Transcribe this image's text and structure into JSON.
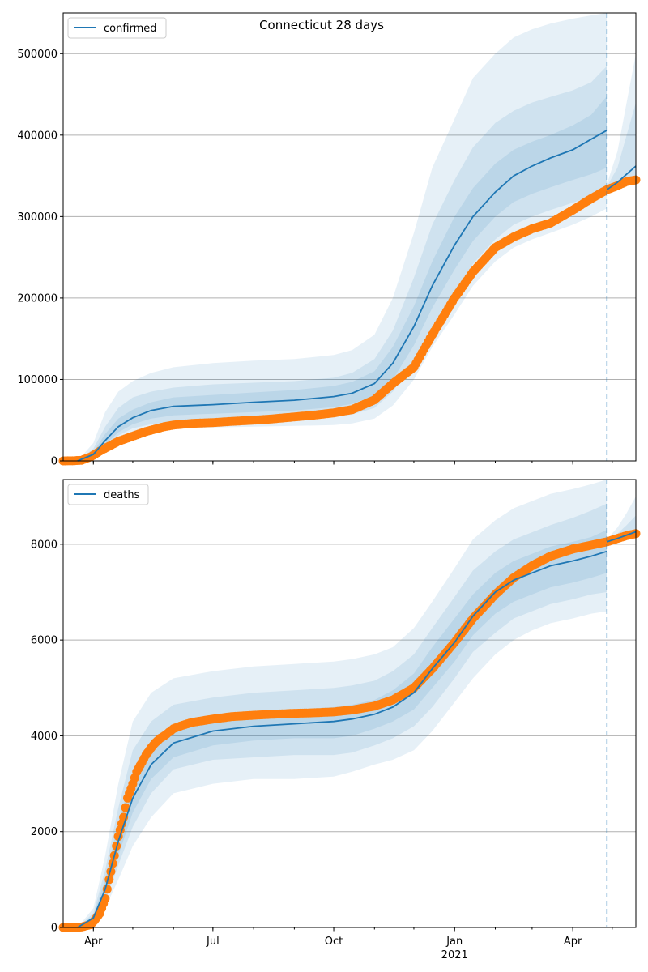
{
  "figure": {
    "title": "Connecticut 28 days"
  },
  "colors": {
    "model_line": "#1f77b4",
    "band": "#1f77b4",
    "observed": "#ff7f0e",
    "grid": "#b0b0b0",
    "axis": "#000000"
  },
  "chart_data": [
    {
      "type": "line",
      "panel": "top",
      "legend": {
        "label": "confirmed",
        "placement": "top-left"
      },
      "title": "Connecticut 28 days",
      "x_range": [
        "2020-03-09",
        "2021-05-19"
      ],
      "ylim": [
        0,
        550000
      ],
      "y_ticks": [
        0,
        100000,
        200000,
        300000,
        400000,
        500000
      ],
      "y_tick_labels": [
        "0",
        "100000",
        "200000",
        "300000",
        "400000",
        "500000"
      ],
      "grid": "horizontal",
      "forecast_date": "2021-04-27",
      "model_median": {
        "x": [
          "2020-03-20",
          "2020-04-01",
          "2020-04-10",
          "2020-04-20",
          "2020-05-01",
          "2020-05-15",
          "2020-06-01",
          "2020-07-01",
          "2020-08-01",
          "2020-09-01",
          "2020-10-01",
          "2020-10-15",
          "2020-11-01",
          "2020-11-15",
          "2020-12-01",
          "2020-12-15",
          "2021-01-01",
          "2021-01-15",
          "2021-02-01",
          "2021-02-15",
          "2021-03-01",
          "2021-03-15",
          "2021-04-01",
          "2021-04-15",
          "2021-04-27"
        ],
        "y": [
          0,
          8000,
          25000,
          42000,
          53000,
          62000,
          67000,
          69000,
          72000,
          74500,
          79000,
          83000,
          95000,
          120000,
          165000,
          215000,
          265000,
          300000,
          330000,
          350000,
          362000,
          372000,
          382000,
          395000,
          406000
        ]
      },
      "model_continuation": {
        "x": [
          "2021-04-27",
          "2021-05-05",
          "2021-05-12",
          "2021-05-19"
        ],
        "y": [
          333000,
          342000,
          352000,
          362000
        ]
      },
      "bands": [
        {
          "x": [
            "2020-03-20",
            "2020-04-01",
            "2020-04-10",
            "2020-04-20",
            "2020-05-01",
            "2020-05-15",
            "2020-06-01",
            "2020-07-01",
            "2020-08-01",
            "2020-09-01",
            "2020-10-01",
            "2020-10-15",
            "2020-11-01",
            "2020-11-15",
            "2020-12-01",
            "2020-12-15",
            "2021-01-01",
            "2021-01-15",
            "2021-02-01",
            "2021-02-15",
            "2021-03-01",
            "2021-03-15",
            "2021-04-01",
            "2021-04-15",
            "2021-04-27"
          ],
          "lower": [
            0,
            3000,
            12000,
            25000,
            34000,
            38000,
            40000,
            41000,
            42000,
            43000,
            44000,
            46000,
            52000,
            68000,
            100000,
            140000,
            180000,
            215000,
            245000,
            262000,
            272000,
            280000,
            290000,
            300000,
            310000
          ],
          "upper": [
            0,
            22000,
            60000,
            85000,
            98000,
            108000,
            115000,
            120000,
            123000,
            125000,
            130000,
            136000,
            155000,
            200000,
            280000,
            360000,
            420000,
            470000,
            500000,
            520000,
            530000,
            537000,
            543000,
            547000,
            550000
          ]
        },
        {
          "x": [
            "2020-03-20",
            "2020-04-01",
            "2020-04-10",
            "2020-04-20",
            "2020-05-01",
            "2020-05-15",
            "2020-06-01",
            "2020-07-01",
            "2020-08-01",
            "2020-09-01",
            "2020-10-01",
            "2020-10-15",
            "2020-11-01",
            "2020-11-15",
            "2020-12-01",
            "2020-12-15",
            "2021-01-01",
            "2021-01-15",
            "2021-02-01",
            "2021-02-15",
            "2021-03-01",
            "2021-03-15",
            "2021-04-01",
            "2021-04-15",
            "2021-04-27"
          ],
          "lower": [
            0,
            5000,
            17000,
            31000,
            40000,
            45000,
            48000,
            50000,
            51000,
            52000,
            54000,
            57000,
            65000,
            85000,
            122000,
            165000,
            208000,
            242000,
            272000,
            290000,
            300000,
            308000,
            317000,
            325000,
            333000
          ],
          "upper": [
            0,
            15000,
            42000,
            65000,
            78000,
            85000,
            90000,
            94000,
            96000,
            98000,
            102000,
            108000,
            125000,
            160000,
            225000,
            290000,
            345000,
            385000,
            415000,
            430000,
            440000,
            447000,
            455000,
            465000,
            485000
          ]
        },
        {
          "x": [
            "2020-03-20",
            "2020-04-01",
            "2020-04-10",
            "2020-04-20",
            "2020-05-01",
            "2020-05-15",
            "2020-06-01",
            "2020-07-01",
            "2020-08-01",
            "2020-09-01",
            "2020-10-01",
            "2020-10-15",
            "2020-11-01",
            "2020-11-15",
            "2020-12-01",
            "2020-12-15",
            "2021-01-01",
            "2021-01-15",
            "2021-02-01",
            "2021-02-15",
            "2021-03-01",
            "2021-03-15",
            "2021-04-01",
            "2021-04-15",
            "2021-04-27"
          ],
          "lower": [
            0,
            6000,
            20000,
            35000,
            45000,
            52000,
            56000,
            58000,
            60000,
            62000,
            66000,
            70000,
            80000,
            100000,
            142000,
            188000,
            235000,
            270000,
            300000,
            318000,
            328000,
            336000,
            345000,
            352000,
            360000
          ],
          "upper": [
            0,
            11000,
            33000,
            52000,
            63000,
            72000,
            78000,
            81000,
            84000,
            87000,
            92000,
            97000,
            110000,
            140000,
            190000,
            245000,
            300000,
            335000,
            365000,
            382000,
            392000,
            400000,
            412000,
            425000,
            448000
          ]
        }
      ],
      "continuation_bands": [
        {
          "x": [
            "2021-04-27",
            "2021-05-05",
            "2021-05-12",
            "2021-05-19"
          ],
          "lower": [
            330000,
            335000,
            338000,
            340000
          ],
          "upper": [
            340000,
            380000,
            440000,
            500000
          ]
        },
        {
          "x": [
            "2021-04-27",
            "2021-05-05",
            "2021-05-12",
            "2021-05-19"
          ],
          "lower": [
            331000,
            337000,
            342000,
            345000
          ],
          "upper": [
            337000,
            360000,
            400000,
            440000
          ]
        }
      ],
      "observed": {
        "x": [
          "2020-03-09",
          "2020-03-16",
          "2020-03-23",
          "2020-03-30",
          "2020-04-06",
          "2020-04-13",
          "2020-04-20",
          "2020-04-27",
          "2020-05-04",
          "2020-05-11",
          "2020-05-18",
          "2020-05-25",
          "2020-06-01",
          "2020-06-15",
          "2020-07-01",
          "2020-07-15",
          "2020-08-01",
          "2020-08-15",
          "2020-09-01",
          "2020-09-15",
          "2020-10-01",
          "2020-10-15",
          "2020-11-01",
          "2020-11-15",
          "2020-12-01",
          "2020-12-15",
          "2021-01-01",
          "2021-01-15",
          "2021-02-01",
          "2021-02-15",
          "2021-03-01",
          "2021-03-15",
          "2021-04-01",
          "2021-04-15",
          "2021-04-27",
          "2021-05-05",
          "2021-05-12",
          "2021-05-19"
        ],
        "y": [
          0,
          100,
          800,
          5000,
          12000,
          18000,
          24000,
          28000,
          32000,
          36000,
          39000,
          42000,
          44000,
          46000,
          47000,
          48500,
          50000,
          51500,
          54000,
          56000,
          59000,
          63000,
          75000,
          95000,
          115000,
          155000,
          200000,
          232000,
          262000,
          275000,
          285000,
          292000,
          308000,
          322000,
          333000,
          338000,
          343000,
          345000
        ]
      }
    },
    {
      "type": "line",
      "panel": "bottom",
      "legend": {
        "label": "deaths",
        "placement": "top-left"
      },
      "x_range": [
        "2020-03-09",
        "2021-05-19"
      ],
      "x_ticks": [
        "2020-04-01",
        "2020-07-01",
        "2020-10-01",
        "2021-01-01",
        "2021-04-01"
      ],
      "x_tick_labels": [
        "Apr",
        "Jul",
        "Oct",
        "Jan",
        "Apr"
      ],
      "x_year_label": "2021",
      "ylim": [
        0,
        9350
      ],
      "y_ticks": [
        0,
        2000,
        4000,
        6000,
        8000
      ],
      "y_tick_labels": [
        "0",
        "2000",
        "4000",
        "6000",
        "8000"
      ],
      "grid": "horizontal",
      "forecast_date": "2021-04-27",
      "model_median": {
        "x": [
          "2020-03-20",
          "2020-04-01",
          "2020-04-10",
          "2020-04-20",
          "2020-05-01",
          "2020-05-15",
          "2020-06-01",
          "2020-07-01",
          "2020-08-01",
          "2020-09-01",
          "2020-10-01",
          "2020-10-15",
          "2020-11-01",
          "2020-11-15",
          "2020-12-01",
          "2020-12-15",
          "2021-01-01",
          "2021-01-15",
          "2021-02-01",
          "2021-02-15",
          "2021-03-01",
          "2021-03-15",
          "2021-04-01",
          "2021-04-15",
          "2021-04-27"
        ],
        "y": [
          0,
          200,
          800,
          1800,
          2700,
          3400,
          3850,
          4100,
          4200,
          4250,
          4300,
          4350,
          4450,
          4600,
          4900,
          5400,
          5950,
          6500,
          7000,
          7250,
          7400,
          7550,
          7650,
          7750,
          7850
        ]
      },
      "model_continuation": {
        "x": [
          "2021-04-27",
          "2021-05-05",
          "2021-05-12",
          "2021-05-19"
        ],
        "y": [
          8050,
          8120,
          8190,
          8260
        ]
      },
      "bands": [
        {
          "x": [
            "2020-03-20",
            "2020-04-01",
            "2020-04-10",
            "2020-04-20",
            "2020-05-01",
            "2020-05-15",
            "2020-06-01",
            "2020-07-01",
            "2020-08-01",
            "2020-09-01",
            "2020-10-01",
            "2020-10-15",
            "2020-11-01",
            "2020-11-15",
            "2020-12-01",
            "2020-12-15",
            "2021-01-01",
            "2021-01-15",
            "2021-02-01",
            "2021-02-15",
            "2021-03-01",
            "2021-03-15",
            "2021-04-01",
            "2021-04-15",
            "2021-04-27"
          ],
          "lower": [
            0,
            100,
            400,
            1000,
            1700,
            2300,
            2800,
            3000,
            3100,
            3100,
            3150,
            3250,
            3400,
            3500,
            3700,
            4100,
            4700,
            5200,
            5700,
            6000,
            6200,
            6350,
            6450,
            6550,
            6600
          ],
          "upper": [
            0,
            400,
            1500,
            3000,
            4300,
            4900,
            5200,
            5350,
            5450,
            5500,
            5550,
            5600,
            5700,
            5850,
            6250,
            6800,
            7500,
            8100,
            8500,
            8750,
            8900,
            9050,
            9150,
            9250,
            9350
          ]
        },
        {
          "x": [
            "2020-03-20",
            "2020-04-01",
            "2020-04-10",
            "2020-04-20",
            "2020-05-01",
            "2020-05-15",
            "2020-06-01",
            "2020-07-01",
            "2020-08-01",
            "2020-09-01",
            "2020-10-01",
            "2020-10-15",
            "2020-11-01",
            "2020-11-15",
            "2020-12-01",
            "2020-12-15",
            "2021-01-01",
            "2021-01-15",
            "2021-02-01",
            "2021-02-15",
            "2021-03-01",
            "2021-03-15",
            "2021-04-01",
            "2021-04-15",
            "2021-04-27"
          ],
          "lower": [
            0,
            150,
            550,
            1300,
            2100,
            2800,
            3300,
            3500,
            3550,
            3600,
            3600,
            3650,
            3800,
            3950,
            4200,
            4600,
            5200,
            5750,
            6150,
            6450,
            6600,
            6750,
            6850,
            6950,
            7000
          ],
          "upper": [
            0,
            300,
            1200,
            2500,
            3700,
            4300,
            4650,
            4800,
            4900,
            4950,
            5000,
            5050,
            5150,
            5350,
            5700,
            6250,
            6900,
            7450,
            7850,
            8100,
            8250,
            8400,
            8550,
            8700,
            8850
          ]
        },
        {
          "x": [
            "2020-03-20",
            "2020-04-01",
            "2020-04-10",
            "2020-04-20",
            "2020-05-01",
            "2020-05-15",
            "2020-06-01",
            "2020-07-01",
            "2020-08-01",
            "2020-09-01",
            "2020-10-01",
            "2020-10-15",
            "2020-11-01",
            "2020-11-15",
            "2020-12-01",
            "2020-12-15",
            "2021-01-01",
            "2021-01-15",
            "2021-02-01",
            "2021-02-15",
            "2021-03-01",
            "2021-03-15",
            "2021-04-01",
            "2021-04-15",
            "2021-04-27"
          ],
          "lower": [
            0,
            180,
            650,
            1500,
            2400,
            3100,
            3550,
            3800,
            3900,
            3950,
            3950,
            4000,
            4150,
            4300,
            4550,
            5000,
            5550,
            6100,
            6550,
            6800,
            6950,
            7100,
            7200,
            7300,
            7400
          ],
          "upper": [
            0,
            250,
            1000,
            2200,
            3200,
            3850,
            4200,
            4400,
            4500,
            4550,
            4600,
            4650,
            4750,
            4950,
            5300,
            5850,
            6450,
            6950,
            7400,
            7650,
            7800,
            7950,
            8050,
            8150,
            8300
          ]
        }
      ],
      "continuation_bands": [
        {
          "x": [
            "2021-04-27",
            "2021-05-05",
            "2021-05-12",
            "2021-05-19"
          ],
          "lower": [
            8000,
            8050,
            8100,
            8150
          ],
          "upper": [
            8100,
            8350,
            8650,
            9000
          ]
        },
        {
          "x": [
            "2021-04-27",
            "2021-05-05",
            "2021-05-12",
            "2021-05-19"
          ],
          "lower": [
            8020,
            8080,
            8140,
            8200
          ],
          "upper": [
            8080,
            8220,
            8400,
            8600
          ]
        }
      ],
      "observed": {
        "x": [
          "2020-03-09",
          "2020-03-16",
          "2020-03-23",
          "2020-03-30",
          "2020-04-02",
          "2020-04-06",
          "2020-04-10",
          "2020-04-13",
          "2020-04-17",
          "2020-04-20",
          "2020-04-24",
          "2020-04-27",
          "2020-05-01",
          "2020-05-04",
          "2020-05-08",
          "2020-05-11",
          "2020-05-15",
          "2020-05-18",
          "2020-05-22",
          "2020-05-25",
          "2020-06-01",
          "2020-06-08",
          "2020-06-15",
          "2020-06-22",
          "2020-07-01",
          "2020-07-15",
          "2020-08-01",
          "2020-08-15",
          "2020-09-01",
          "2020-09-15",
          "2020-10-01",
          "2020-10-15",
          "2020-11-01",
          "2020-11-15",
          "2020-12-01",
          "2020-12-15",
          "2021-01-01",
          "2021-01-15",
          "2021-02-01",
          "2021-02-15",
          "2021-03-01",
          "2021-03-15",
          "2021-04-01",
          "2021-04-15",
          "2021-04-27",
          "2021-05-05",
          "2021-05-12",
          "2021-05-19"
        ],
        "y": [
          0,
          0,
          10,
          60,
          150,
          300,
          600,
          1000,
          1500,
          1900,
          2300,
          2700,
          3000,
          3250,
          3450,
          3600,
          3750,
          3850,
          3950,
          4000,
          4150,
          4220,
          4280,
          4310,
          4350,
          4400,
          4430,
          4450,
          4470,
          4480,
          4500,
          4540,
          4620,
          4750,
          5000,
          5400,
          5950,
          6450,
          6950,
          7300,
          7550,
          7750,
          7900,
          7980,
          8050,
          8120,
          8180,
          8220
        ]
      }
    }
  ]
}
